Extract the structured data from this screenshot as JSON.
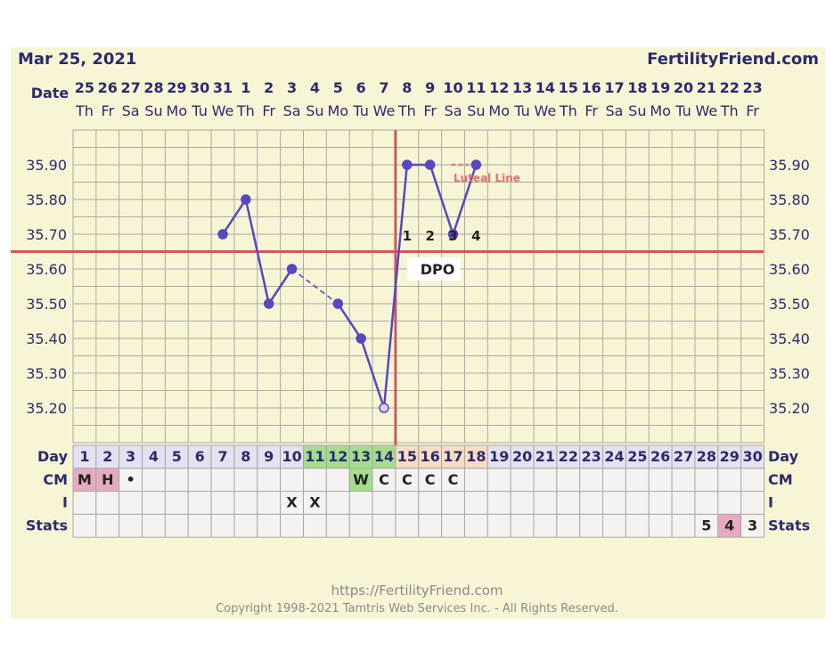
{
  "header": {
    "date": "Mar 25, 2021",
    "site": "FertilityFriend.com"
  },
  "labels": {
    "date_row": "Date",
    "day_row": "Day",
    "cm_row": "CM",
    "i_row": "I",
    "stats_row": "Stats",
    "dpo": "DPO",
    "luteal": "Luteal Line"
  },
  "footer": {
    "url": "https://FertilityFriend.com",
    "copyright": "Copyright 1998-2021 Tamtris Web Services Inc. - All Rights Reserved."
  },
  "colors": {
    "panel": "#f8f5d5",
    "grid": "#a8a8a8",
    "line": "#5548c0",
    "coverline": "#cc5a5a",
    "navy": "#2b2a6e",
    "green": "#a6dc8c",
    "peach": "#f9dcc1",
    "pink": "#e7aac3",
    "cell": "#f5f3ef",
    "daycell": "#e3e2f0"
  },
  "chart_data": {
    "type": "line",
    "title": "",
    "dates": [
      "25",
      "26",
      "27",
      "28",
      "29",
      "30",
      "31",
      "1",
      "2",
      "3",
      "4",
      "5",
      "6",
      "7",
      "8",
      "9",
      "10",
      "11",
      "12",
      "13",
      "14",
      "15",
      "16",
      "17",
      "18",
      "19",
      "20",
      "21",
      "22",
      "23"
    ],
    "weekdays": [
      "Th",
      "Fr",
      "Sa",
      "Su",
      "Mo",
      "Tu",
      "We",
      "Th",
      "Fr",
      "Sa",
      "Su",
      "Mo",
      "Tu",
      "We",
      "Th",
      "Fr",
      "Sa",
      "Su",
      "Mo",
      "Tu",
      "We",
      "Th",
      "Fr",
      "Sa",
      "Su",
      "Mo",
      "Tu",
      "We",
      "Th",
      "Fr"
    ],
    "cycle_days": [
      1,
      2,
      3,
      4,
      5,
      6,
      7,
      8,
      9,
      10,
      11,
      12,
      13,
      14,
      15,
      16,
      17,
      18,
      19,
      20,
      21,
      22,
      23,
      24,
      25,
      26,
      27,
      28,
      29,
      30
    ],
    "y_ticks": [
      "35.90",
      "35.80",
      "35.70",
      "35.60",
      "35.50",
      "35.40",
      "35.30",
      "35.20"
    ],
    "ylim": [
      35.1,
      36.0
    ],
    "temps": [
      {
        "day": 7,
        "value": 35.7
      },
      {
        "day": 8,
        "value": 35.8
      },
      {
        "day": 9,
        "value": 35.5
      },
      {
        "day": 10,
        "value": 35.6
      },
      {
        "day": 12,
        "value": 35.5
      },
      {
        "day": 13,
        "value": 35.4
      },
      {
        "day": 14,
        "value": 35.2
      },
      {
        "day": 15,
        "value": 35.9
      },
      {
        "day": 16,
        "value": 35.9
      },
      {
        "day": 17,
        "value": 35.7
      },
      {
        "day": 18,
        "value": 35.9
      }
    ],
    "dashed_gap": [
      10,
      12
    ],
    "coverline": 35.65,
    "ovulation_day": 14,
    "dpo_numbers": [
      {
        "day": 15,
        "label": "1"
      },
      {
        "day": 16,
        "label": "2"
      },
      {
        "day": 17,
        "label": "3"
      },
      {
        "day": 18,
        "label": "4"
      }
    ],
    "green_days": [
      11,
      12,
      13,
      14
    ],
    "peach_days": [
      15,
      16,
      17,
      18
    ],
    "cm": [
      {
        "day": 1,
        "text": "M",
        "fill": "pink"
      },
      {
        "day": 2,
        "text": "H",
        "fill": "pink"
      },
      {
        "day": 3,
        "text": "•",
        "fill": ""
      },
      {
        "day": 13,
        "text": "W",
        "fill": "green"
      },
      {
        "day": 14,
        "text": "C",
        "fill": ""
      },
      {
        "day": 15,
        "text": "C",
        "fill": ""
      },
      {
        "day": 16,
        "text": "C",
        "fill": ""
      },
      {
        "day": 17,
        "text": "C",
        "fill": ""
      }
    ],
    "intercourse": [
      {
        "day": 10,
        "text": "X"
      },
      {
        "day": 11,
        "text": "X"
      }
    ],
    "stats": [
      {
        "day": 28,
        "text": "5",
        "fill": ""
      },
      {
        "day": 29,
        "text": "4",
        "fill": "pink"
      },
      {
        "day": 30,
        "text": "3",
        "fill": ""
      }
    ]
  }
}
